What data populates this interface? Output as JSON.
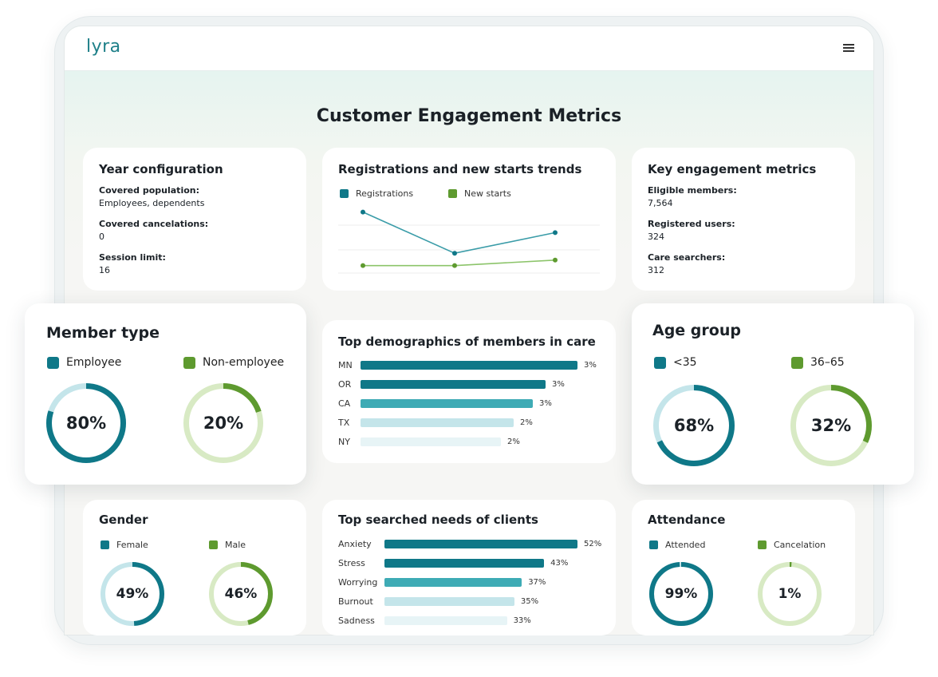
{
  "app": {
    "logo": "lyra",
    "menu_icon": "hamburger-menu-icon"
  },
  "page_title": "Customer Engagement Metrics",
  "colors": {
    "teal": "#0f7888",
    "teal_mid": "#3eabb5",
    "teal_light": "#c4e5ea",
    "teal_lightest": "#e7f4f6",
    "green": "#5e9a2f",
    "green_light": "#d8eac4"
  },
  "year_config": {
    "title": "Year configuration",
    "rows": [
      {
        "label": "Covered population:",
        "value": "Employees, dependents"
      },
      {
        "label": "Covered cancelations:",
        "value": "0"
      },
      {
        "label": "Session limit:",
        "value": "16"
      }
    ]
  },
  "trends": {
    "title": "Registrations and new starts trends",
    "legend": [
      "Registrations",
      "New starts"
    ]
  },
  "key_metrics": {
    "title": "Key engagement metrics",
    "rows": [
      {
        "label": "Eligible members:",
        "value": "7,564"
      },
      {
        "label": "Registered users:",
        "value": "324"
      },
      {
        "label": "Care searchers:",
        "value": "312"
      }
    ]
  },
  "member_type": {
    "title": "Member type",
    "items": [
      {
        "legend": "Employee",
        "percent": 80,
        "label": "80%"
      },
      {
        "legend": "Non-employee",
        "percent": 20,
        "label": "20%"
      }
    ]
  },
  "demographics": {
    "title": "Top demographics of members in care",
    "bars": [
      {
        "label": "MN",
        "value": "3%"
      },
      {
        "label": "OR",
        "value": "3%"
      },
      {
        "label": "CA",
        "value": "3%"
      },
      {
        "label": "TX",
        "value": "2%"
      },
      {
        "label": "NY",
        "value": "2%"
      }
    ]
  },
  "age_group": {
    "title": "Age group",
    "items": [
      {
        "legend": "<35",
        "percent": 68,
        "label": "68%"
      },
      {
        "legend": "36–65",
        "percent": 32,
        "label": "32%"
      }
    ]
  },
  "gender": {
    "title": "Gender",
    "items": [
      {
        "legend": "Female",
        "percent": 49,
        "label": "49%"
      },
      {
        "legend": "Male",
        "percent": 46,
        "label": "46%"
      }
    ]
  },
  "searched_needs": {
    "title": "Top searched needs of clients",
    "bars": [
      {
        "label": "Anxiety",
        "value": "52%"
      },
      {
        "label": "Stress",
        "value": "43%"
      },
      {
        "label": "Worrying",
        "value": "37%"
      },
      {
        "label": "Burnout",
        "value": "35%"
      },
      {
        "label": "Sadness",
        "value": "33%"
      }
    ]
  },
  "attendance": {
    "title": "Attendance",
    "items": [
      {
        "legend": "Attended",
        "percent": 99,
        "label": "99%"
      },
      {
        "legend": "Cancelation",
        "percent": 1,
        "label": "1%"
      }
    ]
  },
  "chart_data": [
    {
      "type": "line",
      "title": "Registrations and new starts trends",
      "x": [
        1,
        2,
        3
      ],
      "series": [
        {
          "name": "Registrations",
          "values": [
            4.5,
            1.5,
            3.0
          ]
        },
        {
          "name": "New starts",
          "values": [
            0.6,
            0.6,
            1.0
          ]
        }
      ],
      "ylim": [
        0,
        5
      ],
      "grid": true
    },
    {
      "type": "bar",
      "title": "Top demographics of members in care",
      "categories": [
        "MN",
        "OR",
        "CA",
        "TX",
        "NY"
      ],
      "values": [
        3.4,
        2.9,
        2.7,
        2.4,
        2.2
      ]
    },
    {
      "type": "bar",
      "title": "Top searched needs of clients",
      "categories": [
        "Anxiety",
        "Stress",
        "Worrying",
        "Burnout",
        "Sadness"
      ],
      "values": [
        52,
        43,
        37,
        35,
        33
      ]
    }
  ]
}
